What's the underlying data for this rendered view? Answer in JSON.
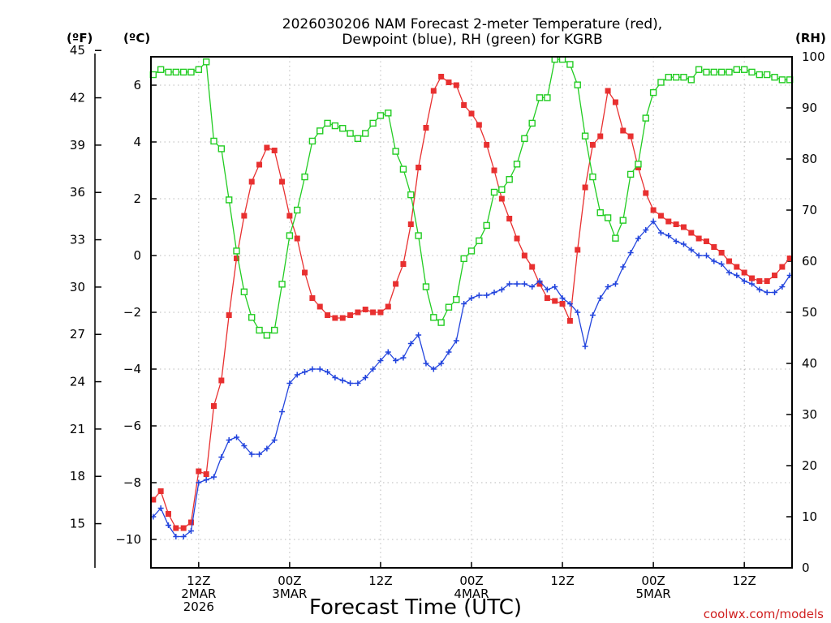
{
  "chart_data": {
    "type": "line",
    "title_lines": [
      "2026030206 NAM Forecast 2-meter Temperature (red),",
      "Dewpoint (blue), RH (green) for KGRB"
    ],
    "xlabel": "Forecast Time (UTC)",
    "credit": "coolwx.com/models",
    "units": {
      "left_outer": "(ºF)",
      "left_inner": "(ºC)",
      "right": "(RH)"
    },
    "axes": {
      "left_f_ticks": [
        "45",
        "42",
        "39",
        "36",
        "33",
        "30",
        "27",
        "24",
        "21",
        "18",
        "15"
      ],
      "left_c_ticks": [
        "6",
        "4",
        "2",
        "0",
        "−2",
        "−4",
        "−6",
        "−8",
        "−10"
      ],
      "right_ticks": [
        "100",
        "90",
        "80",
        "70",
        "60",
        "50",
        "40",
        "30",
        "20",
        "10",
        "0"
      ],
      "celsius_range": [
        -11,
        7
      ],
      "fahrenheit_range": [
        12.2,
        44.6
      ],
      "rh_range": [
        0,
        100
      ],
      "x_range_hours_after_2mar_12z": [
        -6.3,
        78.3
      ],
      "x_ticks": [
        {
          "hour": 0,
          "lines": [
            "12Z",
            "2MAR",
            "2026"
          ]
        },
        {
          "hour": 12,
          "lines": [
            "00Z",
            "3MAR"
          ]
        },
        {
          "hour": 24,
          "lines": [
            "12Z"
          ]
        },
        {
          "hour": 36,
          "lines": [
            "00Z",
            "4MAR"
          ]
        },
        {
          "hour": 48,
          "lines": [
            "12Z"
          ]
        },
        {
          "hour": 60,
          "lines": [
            "00Z",
            "5MAR"
          ]
        },
        {
          "hour": 72,
          "lines": [
            "12Z"
          ]
        }
      ],
      "grid": true
    },
    "series": [
      {
        "name": "Temperature",
        "unit": "C",
        "color": "#e83030",
        "marker": "filled-square",
        "points": [
          [
            -6,
            -8.6
          ],
          [
            -5,
            -8.3
          ],
          [
            -4,
            -9.1
          ],
          [
            -3,
            -9.6
          ],
          [
            -2,
            -9.6
          ],
          [
            -1,
            -9.4
          ],
          [
            0,
            -7.6
          ],
          [
            1,
            -7.7
          ],
          [
            2,
            -5.3
          ],
          [
            3,
            -4.4
          ],
          [
            4,
            -2.1
          ],
          [
            5,
            -0.1
          ],
          [
            6,
            1.4
          ],
          [
            7,
            2.6
          ],
          [
            8,
            3.2
          ],
          [
            9,
            3.8
          ],
          [
            10,
            3.7
          ],
          [
            11,
            2.6
          ],
          [
            12,
            1.4
          ],
          [
            13,
            0.6
          ],
          [
            14,
            -0.6
          ],
          [
            15,
            -1.5
          ],
          [
            16,
            -1.8
          ],
          [
            17,
            -2.1
          ],
          [
            18,
            -2.2
          ],
          [
            19,
            -2.2
          ],
          [
            20,
            -2.1
          ],
          [
            21,
            -2.0
          ],
          [
            22,
            -1.9
          ],
          [
            23,
            -2.0
          ],
          [
            24,
            -2.0
          ],
          [
            25,
            -1.8
          ],
          [
            26,
            -1.0
          ],
          [
            27,
            -0.3
          ],
          [
            28,
            1.1
          ],
          [
            29,
            3.1
          ],
          [
            30,
            4.5
          ],
          [
            31,
            5.8
          ],
          [
            32,
            6.3
          ],
          [
            33,
            6.1
          ],
          [
            34,
            6.0
          ],
          [
            35,
            5.3
          ],
          [
            36,
            5.0
          ],
          [
            37,
            4.6
          ],
          [
            38,
            3.9
          ],
          [
            39,
            3.0
          ],
          [
            40,
            2.0
          ],
          [
            41,
            1.3
          ],
          [
            42,
            0.6
          ],
          [
            43,
            0.0
          ],
          [
            44,
            -0.4
          ],
          [
            45,
            -1.0
          ],
          [
            46,
            -1.5
          ],
          [
            47,
            -1.6
          ],
          [
            48,
            -1.7
          ],
          [
            49,
            -2.3
          ],
          [
            50,
            0.2
          ],
          [
            51,
            2.4
          ],
          [
            52,
            3.9
          ],
          [
            53,
            4.2
          ],
          [
            54,
            5.8
          ],
          [
            55,
            5.4
          ],
          [
            56,
            4.4
          ],
          [
            57,
            4.2
          ],
          [
            58,
            3.1
          ],
          [
            59,
            2.2
          ],
          [
            60,
            1.6
          ],
          [
            61,
            1.4
          ],
          [
            62,
            1.2
          ],
          [
            63,
            1.1
          ],
          [
            64,
            1.0
          ],
          [
            65,
            0.8
          ],
          [
            66,
            0.6
          ],
          [
            67,
            0.5
          ],
          [
            68,
            0.3
          ],
          [
            69,
            0.1
          ],
          [
            70,
            -0.2
          ],
          [
            71,
            -0.4
          ],
          [
            72,
            -0.6
          ],
          [
            73,
            -0.8
          ],
          [
            74,
            -0.9
          ],
          [
            75,
            -0.9
          ],
          [
            76,
            -0.7
          ],
          [
            77,
            -0.4
          ],
          [
            78,
            -0.1
          ]
        ]
      },
      {
        "name": "Dewpoint",
        "unit": "C",
        "color": "#2244dd",
        "marker": "plus",
        "points": [
          [
            -6,
            -9.2
          ],
          [
            -5,
            -8.9
          ],
          [
            -4,
            -9.5
          ],
          [
            -3,
            -9.9
          ],
          [
            -2,
            -9.9
          ],
          [
            -1,
            -9.7
          ],
          [
            0,
            -8.0
          ],
          [
            1,
            -7.9
          ],
          [
            2,
            -7.8
          ],
          [
            3,
            -7.1
          ],
          [
            4,
            -6.5
          ],
          [
            5,
            -6.4
          ],
          [
            6,
            -6.7
          ],
          [
            7,
            -7.0
          ],
          [
            8,
            -7.0
          ],
          [
            9,
            -6.8
          ],
          [
            10,
            -6.5
          ],
          [
            11,
            -5.5
          ],
          [
            12,
            -4.5
          ],
          [
            13,
            -4.2
          ],
          [
            14,
            -4.1
          ],
          [
            15,
            -4.0
          ],
          [
            16,
            -4.0
          ],
          [
            17,
            -4.1
          ],
          [
            18,
            -4.3
          ],
          [
            19,
            -4.4
          ],
          [
            20,
            -4.5
          ],
          [
            21,
            -4.5
          ],
          [
            22,
            -4.3
          ],
          [
            23,
            -4.0
          ],
          [
            24,
            -3.7
          ],
          [
            25,
            -3.4
          ],
          [
            26,
            -3.7
          ],
          [
            27,
            -3.6
          ],
          [
            28,
            -3.1
          ],
          [
            29,
            -2.8
          ],
          [
            30,
            -3.8
          ],
          [
            31,
            -4.0
          ],
          [
            32,
            -3.8
          ],
          [
            33,
            -3.4
          ],
          [
            34,
            -3.0
          ],
          [
            35,
            -1.7
          ],
          [
            36,
            -1.5
          ],
          [
            37,
            -1.4
          ],
          [
            38,
            -1.4
          ],
          [
            39,
            -1.3
          ],
          [
            40,
            -1.2
          ],
          [
            41,
            -1.0
          ],
          [
            42,
            -1.0
          ],
          [
            43,
            -1.0
          ],
          [
            44,
            -1.1
          ],
          [
            45,
            -0.9
          ],
          [
            46,
            -1.2
          ],
          [
            47,
            -1.1
          ],
          [
            48,
            -1.5
          ],
          [
            49,
            -1.7
          ],
          [
            50,
            -2.0
          ],
          [
            51,
            -3.2
          ],
          [
            52,
            -2.1
          ],
          [
            53,
            -1.5
          ],
          [
            54,
            -1.1
          ],
          [
            55,
            -1.0
          ],
          [
            56,
            -0.4
          ],
          [
            57,
            0.1
          ],
          [
            58,
            0.6
          ],
          [
            59,
            0.9
          ],
          [
            60,
            1.2
          ],
          [
            61,
            0.8
          ],
          [
            62,
            0.7
          ],
          [
            63,
            0.5
          ],
          [
            64,
            0.4
          ],
          [
            65,
            0.2
          ],
          [
            66,
            0.0
          ],
          [
            67,
            0.0
          ],
          [
            68,
            -0.2
          ],
          [
            69,
            -0.3
          ],
          [
            70,
            -0.6
          ],
          [
            71,
            -0.7
          ],
          [
            72,
            -0.9
          ],
          [
            73,
            -1.0
          ],
          [
            74,
            -1.2
          ],
          [
            75,
            -1.3
          ],
          [
            76,
            -1.3
          ],
          [
            77,
            -1.1
          ],
          [
            78,
            -0.7
          ]
        ]
      },
      {
        "name": "RH",
        "unit": "%",
        "color": "#22cc22",
        "marker": "open-square",
        "points": [
          [
            -6,
            96.5
          ],
          [
            -5,
            97.5
          ],
          [
            -4,
            97.0
          ],
          [
            -3,
            97.0
          ],
          [
            -2,
            97.0
          ],
          [
            -1,
            97.0
          ],
          [
            0,
            97.5
          ],
          [
            1,
            99.0
          ],
          [
            2,
            83.5
          ],
          [
            3,
            82.0
          ],
          [
            4,
            72.0
          ],
          [
            5,
            62.0
          ],
          [
            6,
            54.0
          ],
          [
            7,
            49.0
          ],
          [
            8,
            46.5
          ],
          [
            9,
            45.5
          ],
          [
            10,
            46.5
          ],
          [
            11,
            55.5
          ],
          [
            12,
            65.0
          ],
          [
            13,
            70.0
          ],
          [
            14,
            76.5
          ],
          [
            15,
            83.5
          ],
          [
            16,
            85.5
          ],
          [
            17,
            87.0
          ],
          [
            18,
            86.5
          ],
          [
            19,
            86.0
          ],
          [
            20,
            85.0
          ],
          [
            21,
            84.0
          ],
          [
            22,
            85.0
          ],
          [
            23,
            87.0
          ],
          [
            24,
            88.5
          ],
          [
            25,
            89.0
          ],
          [
            26,
            81.5
          ],
          [
            27,
            78.0
          ],
          [
            28,
            73.0
          ],
          [
            29,
            65.0
          ],
          [
            30,
            55.0
          ],
          [
            31,
            49.0
          ],
          [
            32,
            48.0
          ],
          [
            33,
            51.0
          ],
          [
            34,
            52.5
          ],
          [
            35,
            60.5
          ],
          [
            36,
            62.0
          ],
          [
            37,
            64.0
          ],
          [
            38,
            67.0
          ],
          [
            39,
            73.5
          ],
          [
            40,
            74.0
          ],
          [
            41,
            76.0
          ],
          [
            42,
            79.0
          ],
          [
            43,
            84.0
          ],
          [
            44,
            87.0
          ],
          [
            45,
            92.0
          ],
          [
            46,
            92.0
          ],
          [
            47,
            99.5
          ],
          [
            48,
            99.5
          ],
          [
            49,
            98.5
          ],
          [
            50,
            94.5
          ],
          [
            51,
            84.5
          ],
          [
            52,
            76.5
          ],
          [
            53,
            69.5
          ],
          [
            54,
            68.5
          ],
          [
            55,
            64.5
          ],
          [
            56,
            68.0
          ],
          [
            57,
            77.0
          ],
          [
            58,
            79.0
          ],
          [
            59,
            88.0
          ],
          [
            60,
            93.0
          ],
          [
            61,
            95.0
          ],
          [
            62,
            96.0
          ],
          [
            63,
            96.0
          ],
          [
            64,
            96.0
          ],
          [
            65,
            95.5
          ],
          [
            66,
            97.5
          ],
          [
            67,
            97.0
          ],
          [
            68,
            97.0
          ],
          [
            69,
            97.0
          ],
          [
            70,
            97.0
          ],
          [
            71,
            97.5
          ],
          [
            72,
            97.5
          ],
          [
            73,
            97.0
          ],
          [
            74,
            96.5
          ],
          [
            75,
            96.5
          ],
          [
            76,
            96.0
          ],
          [
            77,
            95.5
          ],
          [
            78,
            95.5
          ]
        ]
      }
    ]
  }
}
